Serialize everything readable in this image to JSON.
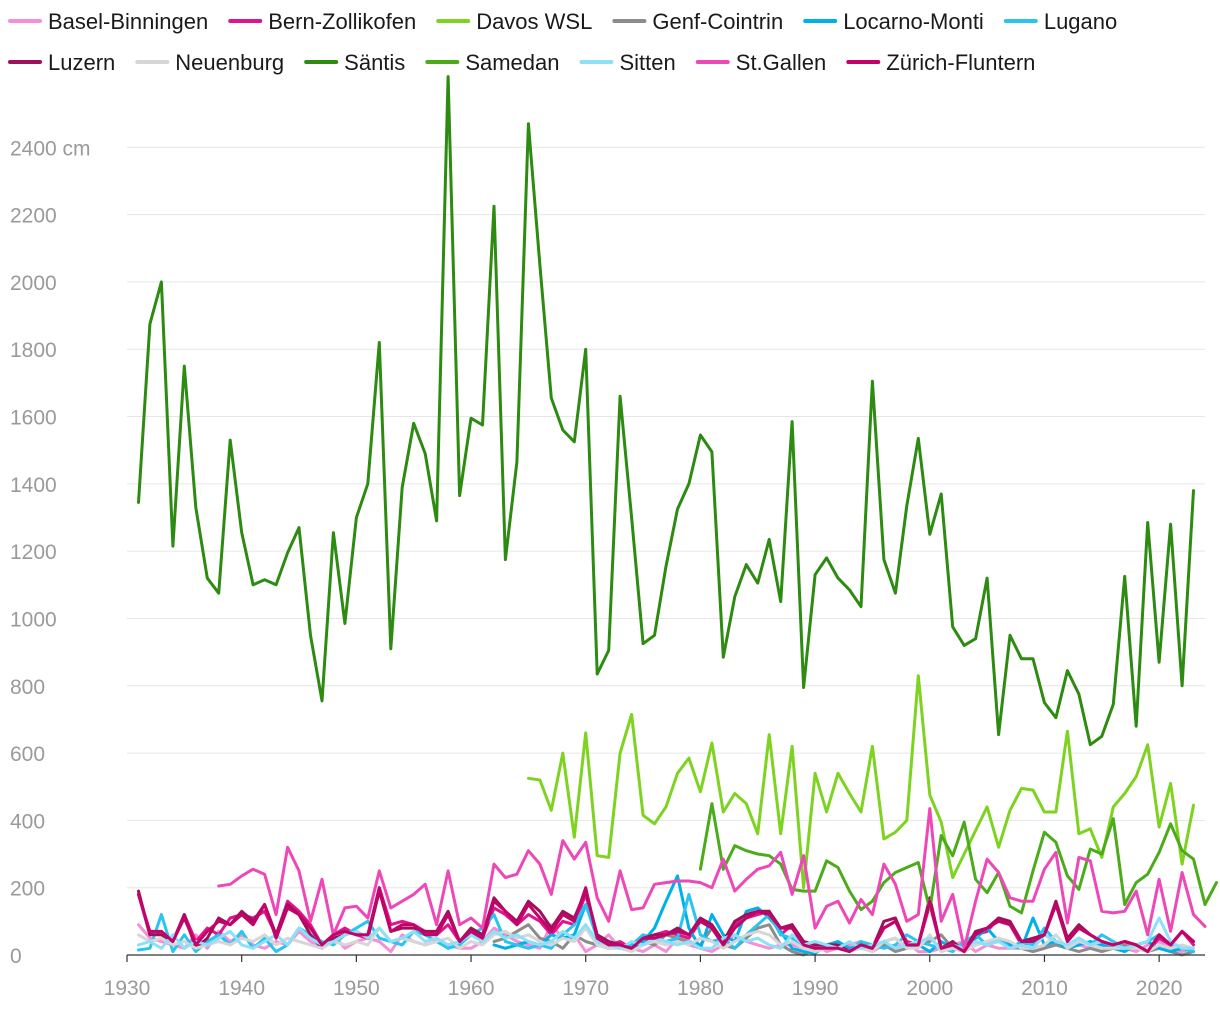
{
  "chart_data": {
    "type": "line",
    "title": "",
    "xlabel": "",
    "ylabel": "",
    "unit": "cm",
    "xlim": [
      1930,
      2024
    ],
    "ylim": [
      0,
      2600
    ],
    "x_ticks": [
      1930,
      1940,
      1950,
      1960,
      1970,
      1980,
      1990,
      2000,
      2010,
      2020
    ],
    "y_ticks": [
      0,
      200,
      400,
      600,
      800,
      1000,
      1200,
      1400,
      1600,
      1800,
      2000,
      2200,
      2400
    ],
    "y_tick_labels": [
      "0",
      "200",
      "400",
      "600",
      "800",
      "1000",
      "1200",
      "1400",
      "1600",
      "1800",
      "2000",
      "2200",
      "2400 cm"
    ],
    "grid": true,
    "legend_position": "top",
    "series": [
      {
        "name": "Basel-Binningen",
        "color": "#f48fd8",
        "start": 1931,
        "values": [
          90,
          50,
          40,
          30,
          20,
          60,
          20,
          70,
          40,
          60,
          30,
          20,
          40,
          30,
          70,
          40,
          20,
          60,
          20,
          40,
          50,
          40,
          10,
          60,
          40,
          30,
          40,
          30,
          20,
          20,
          40,
          80,
          60,
          40,
          30,
          20,
          90,
          50,
          60,
          10,
          30,
          60,
          20,
          20,
          10,
          30,
          10,
          50,
          30,
          20,
          10,
          30,
          60,
          40,
          30,
          20,
          30,
          30,
          20,
          30,
          10,
          20,
          30,
          40,
          10,
          30,
          20,
          40,
          10,
          10,
          20,
          30,
          40,
          10,
          30,
          20,
          20,
          20,
          10,
          20,
          40,
          20,
          30,
          20,
          10,
          30,
          20,
          10,
          30,
          40,
          20,
          10,
          20
        ]
      },
      {
        "name": "Bern-Zollikofen",
        "color": "#e0148c",
        "start": 1931,
        "values": [
          180,
          60,
          70,
          40,
          120,
          40,
          80,
          60,
          110,
          120,
          110,
          130,
          60,
          160,
          130,
          90,
          30,
          60,
          80,
          60,
          50,
          200,
          90,
          100,
          90,
          70,
          60,
          90,
          40,
          70,
          50,
          140,
          120,
          90,
          120,
          100,
          60,
          100,
          90,
          180,
          50,
          30,
          40,
          20,
          40,
          60,
          70,
          60,
          50,
          100,
          80,
          30,
          90,
          110,
          120,
          130,
          60,
          90,
          30,
          20,
          30,
          20,
          10,
          30,
          20,
          80,
          100,
          40,
          30,
          150,
          20,
          40,
          10,
          60,
          70,
          110,
          90,
          30,
          40,
          60,
          150,
          50,
          80,
          60,
          40,
          30,
          40,
          30,
          10,
          50,
          30,
          70,
          30
        ]
      },
      {
        "name": "Davos WSL",
        "color": "#7ed321",
        "start": 1965,
        "values": [
          525,
          520,
          430,
          600,
          350,
          660,
          295,
          290,
          600,
          715,
          415,
          390,
          440,
          540,
          585,
          485,
          630,
          425,
          480,
          450,
          360,
          655,
          360,
          620,
          200,
          540,
          425,
          540,
          480,
          425,
          620,
          345,
          365,
          400,
          830,
          475,
          395,
          230,
          300,
          370,
          440,
          320,
          430,
          495,
          490,
          425,
          425,
          665,
          360,
          375,
          290,
          440,
          480,
          530,
          625,
          380,
          510,
          270,
          445
        ]
      },
      {
        "name": "Genf-Cointrin",
        "color": "#8c8c8c",
        "start": 1962,
        "values": [
          40,
          50,
          70,
          90,
          50,
          40,
          20,
          60,
          40,
          30,
          20,
          30,
          20,
          40,
          30,
          60,
          50,
          40,
          30,
          80,
          30,
          20,
          50,
          80,
          90,
          30,
          10,
          0,
          20,
          30,
          20,
          10,
          40,
          20,
          30,
          10,
          20,
          30,
          40,
          60,
          20,
          10,
          30,
          40,
          50,
          30,
          20,
          10,
          20,
          30,
          20,
          10,
          20,
          10,
          20,
          30,
          20,
          10,
          20,
          10,
          0,
          10
        ]
      },
      {
        "name": "Locarno-Monti",
        "color": "#00b0e8",
        "start": 1962,
        "values": [
          30,
          20,
          30,
          40,
          30,
          60,
          50,
          60,
          150,
          60,
          40,
          30,
          20,
          40,
          80,
          160,
          235,
          80,
          20,
          120,
          60,
          40,
          130,
          140,
          110,
          70,
          20,
          10,
          5,
          30,
          40,
          20,
          30,
          10,
          40,
          50,
          20,
          30,
          10,
          40,
          20,
          30,
          50,
          80,
          40,
          30,
          20,
          110,
          30,
          40,
          20,
          30,
          40,
          30,
          20,
          10,
          30,
          40,
          20,
          10,
          20,
          10
        ]
      },
      {
        "name": "Lugano",
        "color": "#29c5f0",
        "start": 1931,
        "values": [
          15,
          20,
          120,
          10,
          60,
          10,
          40,
          60,
          30,
          70,
          20,
          50,
          10,
          30,
          80,
          60,
          40,
          30,
          60,
          80,
          100,
          50,
          40,
          30,
          70,
          60,
          40,
          20,
          30,
          60,
          80,
          120,
          40,
          30,
          20,
          30,
          20,
          60,
          90,
          150,
          50,
          30,
          20,
          30,
          60,
          50,
          40,
          50,
          180,
          60,
          40,
          50,
          20,
          60,
          90,
          120,
          60,
          50,
          30,
          10,
          20,
          30,
          10,
          40,
          30,
          20,
          30,
          60,
          40,
          30,
          20,
          10,
          40,
          60,
          30,
          50,
          20,
          40,
          30,
          80,
          40,
          30,
          50,
          30,
          60,
          40,
          20,
          30,
          40,
          60,
          30,
          20,
          10
        ]
      },
      {
        "name": "Luzern",
        "color": "#a0105a",
        "start": 1931,
        "values": [
          190,
          60,
          60,
          40,
          120,
          20,
          50,
          110,
          90,
          130,
          100,
          150,
          60,
          150,
          120,
          60,
          20,
          50,
          60,
          70,
          50,
          190,
          70,
          80,
          80,
          70,
          70,
          130,
          40,
          80,
          60,
          170,
          130,
          100,
          160,
          130,
          80,
          130,
          110,
          190,
          60,
          40,
          30,
          20,
          50,
          60,
          60,
          80,
          60,
          110,
          90,
          40,
          100,
          120,
          130,
          130,
          80,
          90,
          40,
          30,
          30,
          30,
          10,
          30,
          20,
          100,
          110,
          30,
          30,
          170,
          20,
          40,
          10,
          70,
          80,
          110,
          100,
          40,
          50,
          60,
          160,
          50,
          90,
          60,
          40,
          30,
          40,
          30,
          10,
          60,
          30,
          70,
          40
        ]
      },
      {
        "name": "Neuenburg",
        "color": "#d6d6d6",
        "start": 1931,
        "values": [
          60,
          40,
          50,
          30,
          40,
          20,
          30,
          40,
          30,
          50,
          40,
          60,
          30,
          50,
          40,
          30,
          20,
          40,
          30,
          40,
          30,
          80,
          40,
          50,
          40,
          30,
          40,
          50,
          20,
          40,
          30,
          60,
          70,
          50,
          60,
          40,
          30,
          50,
          40,
          80,
          30,
          20,
          20,
          10,
          30,
          40,
          30,
          40,
          30,
          50,
          40,
          20,
          40,
          60,
          70,
          60,
          30,
          40,
          20,
          10,
          20,
          20,
          10,
          20,
          10,
          40,
          50,
          20,
          20,
          60,
          10,
          20,
          10,
          30,
          40,
          50,
          40,
          20,
          20,
          30,
          60,
          20,
          40,
          30,
          20,
          20,
          20,
          20,
          10,
          30,
          20,
          30,
          20
        ]
      },
      {
        "name": "Säntis",
        "color": "#2e8b12",
        "start": 1931,
        "values": [
          1345,
          1875,
          2000,
          1215,
          1750,
          1330,
          1120,
          1075,
          1530,
          1255,
          1100,
          1115,
          1100,
          1195,
          1270,
          950,
          755,
          1255,
          985,
          1300,
          1400,
          1820,
          910,
          1390,
          1580,
          1490,
          1290,
          2610,
          1365,
          1595,
          1575,
          2225,
          1175,
          1465,
          2470,
          2050,
          1655,
          1560,
          1525,
          1800,
          835,
          905,
          1660,
          1300,
          925,
          950,
          1155,
          1325,
          1400,
          1545,
          1495,
          885,
          1065,
          1160,
          1105,
          1235,
          1050,
          1585,
          795,
          1130,
          1180,
          1120,
          1085,
          1035,
          1705,
          1175,
          1075,
          1335,
          1535,
          1250,
          1370,
          975,
          920,
          940,
          1120,
          655,
          950,
          880,
          880,
          750,
          705,
          845,
          775,
          625,
          650,
          745,
          1125,
          680,
          1285,
          870,
          1280,
          800,
          1380
        ]
      },
      {
        "name": "Samedan",
        "color": "#4cab1a",
        "start": 1980,
        "values": [
          255,
          450,
          255,
          325,
          310,
          300,
          295,
          270,
          195,
          190,
          190,
          280,
          260,
          190,
          135,
          160,
          215,
          245,
          260,
          275,
          135,
          355,
          295,
          395,
          225,
          185,
          245,
          145,
          125,
          250,
          365,
          335,
          235,
          195,
          315,
          300,
          405,
          150,
          215,
          240,
          305,
          390,
          310,
          285,
          150,
          215
        ]
      },
      {
        "name": "Sitten",
        "color": "#8de0f8",
        "start": 1931,
        "values": [
          30,
          40,
          20,
          60,
          20,
          40,
          30,
          50,
          70,
          30,
          20,
          40,
          60,
          30,
          80,
          50,
          30,
          40,
          60,
          70,
          50,
          80,
          40,
          50,
          70,
          40,
          50,
          30,
          40,
          60,
          40,
          70,
          50,
          60,
          40,
          30,
          40,
          70,
          50,
          90,
          40,
          30,
          20,
          40,
          30,
          50,
          40,
          30,
          40,
          20,
          20,
          50,
          60,
          40,
          50,
          30,
          20,
          60,
          30,
          40,
          30,
          20,
          40,
          20,
          30,
          40,
          20,
          30,
          40,
          50,
          20,
          30,
          20,
          40,
          30,
          40,
          20,
          30,
          20,
          60,
          40,
          30,
          50,
          30,
          40,
          30,
          20,
          30,
          40,
          110,
          40,
          20,
          20
        ]
      },
      {
        "name": "St.Gallen",
        "color": "#ee48b8",
        "start": 1938,
        "values": [
          205,
          210,
          235,
          255,
          240,
          120,
          320,
          250,
          100,
          225,
          60,
          140,
          145,
          110,
          250,
          140,
          160,
          180,
          210,
          90,
          250,
          90,
          110,
          80,
          270,
          230,
          240,
          310,
          270,
          180,
          340,
          285,
          335,
          170,
          100,
          250,
          135,
          140,
          210,
          215,
          220,
          220,
          215,
          200,
          285,
          190,
          225,
          255,
          265,
          305,
          180,
          295,
          80,
          145,
          160,
          95,
          165,
          120,
          270,
          210,
          100,
          120,
          435,
          100,
          180,
          20,
          160,
          285,
          245,
          170,
          160,
          160,
          255,
          305,
          95,
          290,
          280,
          130,
          125,
          130,
          190,
          60,
          225,
          70,
          245,
          120,
          85
        ]
      },
      {
        "name": "Zürich-Fluntern",
        "color": "#c2046a",
        "start": 1931,
        "values": [
          180,
          70,
          70,
          40,
          110,
          30,
          70,
          100,
          90,
          120,
          90,
          150,
          50,
          140,
          120,
          80,
          30,
          60,
          70,
          60,
          60,
          200,
          70,
          90,
          90,
          60,
          60,
          120,
          40,
          70,
          50,
          160,
          130,
          90,
          150,
          110,
          70,
          120,
          100,
          200,
          50,
          30,
          30,
          20,
          50,
          50,
          60,
          70,
          60,
          100,
          80,
          30,
          80,
          110,
          130,
          120,
          80,
          80,
          30,
          20,
          20,
          20,
          10,
          30,
          20,
          80,
          100,
          30,
          30,
          160,
          20,
          30,
          10,
          60,
          80,
          100,
          90,
          40,
          40,
          60,
          150,
          40,
          80,
          60,
          40,
          30,
          40,
          30,
          10,
          60,
          30,
          70,
          40
        ]
      }
    ]
  }
}
